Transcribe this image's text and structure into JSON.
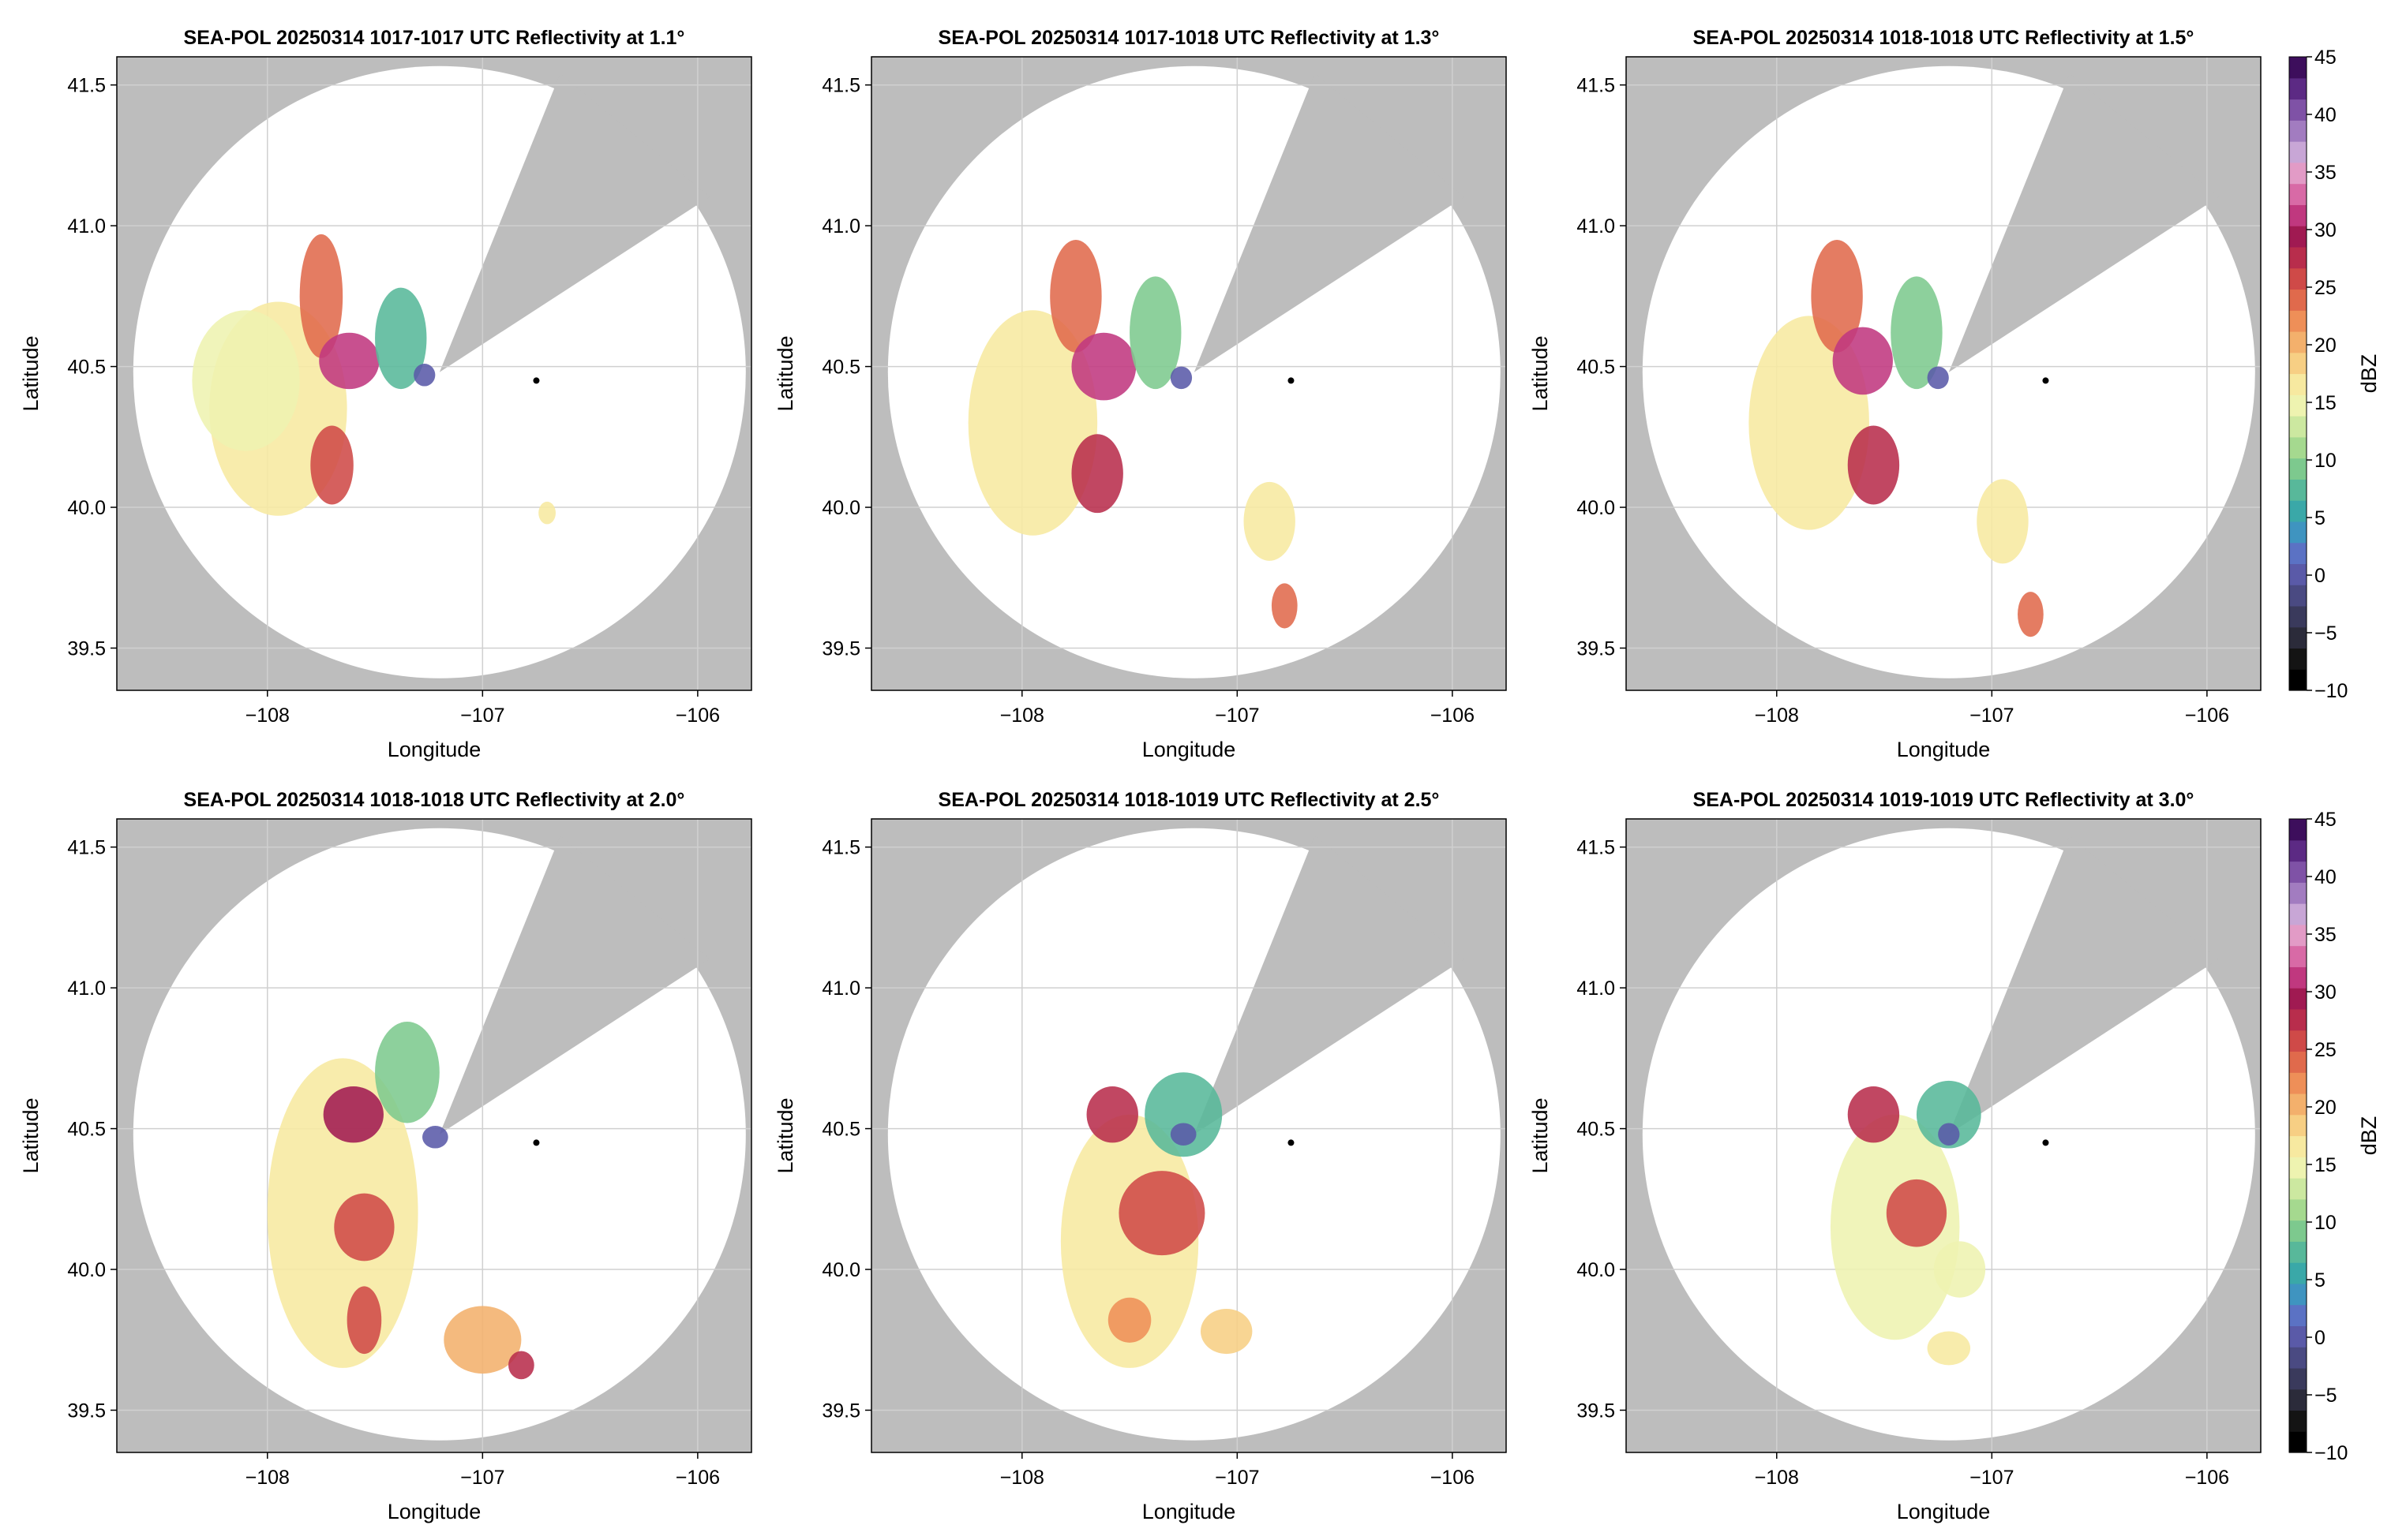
{
  "figure": {
    "colorbar": {
      "label": "dBZ",
      "ticks": [
        -10,
        -5,
        0,
        5,
        10,
        15,
        20,
        25,
        30,
        35,
        40,
        45
      ],
      "tick_labels": [
        "−10",
        "−5",
        "0",
        "5",
        "10",
        "15",
        "20",
        "25",
        "30",
        "35",
        "40",
        "45"
      ],
      "range": [
        -10,
        45
      ],
      "colors": [
        "#000000",
        "#141414",
        "#2b2b3a",
        "#3a3a5c",
        "#4a4a82",
        "#5a5aa8",
        "#5b72c4",
        "#3f94c0",
        "#3aa8a8",
        "#58b89a",
        "#7dc98e",
        "#a5d98f",
        "#cce8a0",
        "#eef3b0",
        "#f7e9a0",
        "#f7cf84",
        "#f3b06c",
        "#ee8f58",
        "#e06a4c",
        "#cf4a48",
        "#b82d4c",
        "#a01a52",
        "#c0387f",
        "#d86aa6",
        "#e29bc6",
        "#c8a6d6",
        "#a27cc0",
        "#7f52a6",
        "#5c2a84",
        "#3d0e5c"
      ]
    },
    "site_marker": {
      "lon": -106.75,
      "lat": 40.45
    },
    "radar_center": {
      "lon": -107.2,
      "lat": 40.48
    }
  },
  "chart_data": [
    {
      "type": "heatmap",
      "title": "SEA-POL 20250314 1017-1017 UTC Reflectivity at 1.1°",
      "xlabel": "Longitude",
      "ylabel": "Latitude",
      "xlim": [
        -108.7,
        -105.75
      ],
      "ylim": [
        39.35,
        41.6
      ],
      "xticks": [
        -108,
        -107,
        -106
      ],
      "xtick_labels": [
        "−108",
        "−107",
        "−106"
      ],
      "yticks": [
        39.5,
        40.0,
        40.5,
        41.0,
        41.5
      ],
      "ytick_labels": [
        "39.5",
        "40.0",
        "40.5",
        "41.0",
        "41.5"
      ],
      "grid": true,
      "value_units": "dBZ",
      "value_range": [
        -10,
        45
      ],
      "echo_regions": [
        {
          "lon": -107.95,
          "lat": 40.35,
          "rx": 0.32,
          "ry": 0.38,
          "dbz": 16
        },
        {
          "lon": -108.1,
          "lat": 40.45,
          "rx": 0.25,
          "ry": 0.25,
          "dbz": 14
        },
        {
          "lon": -107.75,
          "lat": 40.75,
          "rx": 0.1,
          "ry": 0.22,
          "dbz": 24
        },
        {
          "lon": -107.62,
          "lat": 40.52,
          "rx": 0.14,
          "ry": 0.1,
          "dbz": 31
        },
        {
          "lon": -107.7,
          "lat": 40.15,
          "rx": 0.1,
          "ry": 0.14,
          "dbz": 26
        },
        {
          "lon": -107.38,
          "lat": 40.6,
          "rx": 0.12,
          "ry": 0.18,
          "dbz": 8
        },
        {
          "lon": -107.27,
          "lat": 40.47,
          "rx": 0.05,
          "ry": 0.04,
          "dbz": 0
        },
        {
          "lon": -106.7,
          "lat": 39.98,
          "rx": 0.04,
          "ry": 0.04,
          "dbz": 17
        }
      ]
    },
    {
      "type": "heatmap",
      "title": "SEA-POL 20250314 1017-1018 UTC Reflectivity at 1.3°",
      "xlabel": "Longitude",
      "ylabel": "Latitude",
      "xlim": [
        -108.7,
        -105.75
      ],
      "ylim": [
        39.35,
        41.6
      ],
      "xticks": [
        -108,
        -107,
        -106
      ],
      "xtick_labels": [
        "−108",
        "−107",
        "−106"
      ],
      "yticks": [
        39.5,
        40.0,
        40.5,
        41.0,
        41.5
      ],
      "ytick_labels": [
        "39.5",
        "40.0",
        "40.5",
        "41.0",
        "41.5"
      ],
      "grid": true,
      "value_units": "dBZ",
      "value_range": [
        -10,
        45
      ],
      "echo_regions": [
        {
          "lon": -107.95,
          "lat": 40.3,
          "rx": 0.3,
          "ry": 0.4,
          "dbz": 16
        },
        {
          "lon": -107.75,
          "lat": 40.75,
          "rx": 0.12,
          "ry": 0.2,
          "dbz": 24
        },
        {
          "lon": -107.62,
          "lat": 40.5,
          "rx": 0.15,
          "ry": 0.12,
          "dbz": 31
        },
        {
          "lon": -107.65,
          "lat": 40.12,
          "rx": 0.12,
          "ry": 0.14,
          "dbz": 27
        },
        {
          "lon": -107.38,
          "lat": 40.62,
          "rx": 0.12,
          "ry": 0.2,
          "dbz": 9
        },
        {
          "lon": -107.26,
          "lat": 40.46,
          "rx": 0.05,
          "ry": 0.04,
          "dbz": 0
        },
        {
          "lon": -106.85,
          "lat": 39.95,
          "rx": 0.12,
          "ry": 0.14,
          "dbz": 16
        },
        {
          "lon": -106.78,
          "lat": 39.65,
          "rx": 0.06,
          "ry": 0.08,
          "dbz": 23
        }
      ]
    },
    {
      "type": "heatmap",
      "title": "SEA-POL 20250314 1018-1018 UTC Reflectivity at 1.5°",
      "xlabel": "Longitude",
      "ylabel": "Latitude",
      "xlim": [
        -108.7,
        -105.75
      ],
      "ylim": [
        39.35,
        41.6
      ],
      "xticks": [
        -108,
        -107,
        -106
      ],
      "xtick_labels": [
        "−108",
        "−107",
        "−106"
      ],
      "yticks": [
        39.5,
        40.0,
        40.5,
        41.0,
        41.5
      ],
      "ytick_labels": [
        "39.5",
        "40.0",
        "40.5",
        "41.0",
        "41.5"
      ],
      "grid": true,
      "value_units": "dBZ",
      "value_range": [
        -10,
        45
      ],
      "echo_regions": [
        {
          "lon": -107.85,
          "lat": 40.3,
          "rx": 0.28,
          "ry": 0.38,
          "dbz": 17
        },
        {
          "lon": -107.72,
          "lat": 40.75,
          "rx": 0.12,
          "ry": 0.2,
          "dbz": 24
        },
        {
          "lon": -107.6,
          "lat": 40.52,
          "rx": 0.14,
          "ry": 0.12,
          "dbz": 31
        },
        {
          "lon": -107.55,
          "lat": 40.15,
          "rx": 0.12,
          "ry": 0.14,
          "dbz": 27
        },
        {
          "lon": -107.35,
          "lat": 40.62,
          "rx": 0.12,
          "ry": 0.2,
          "dbz": 9
        },
        {
          "lon": -107.25,
          "lat": 40.46,
          "rx": 0.05,
          "ry": 0.04,
          "dbz": 0
        },
        {
          "lon": -106.95,
          "lat": 39.95,
          "rx": 0.12,
          "ry": 0.15,
          "dbz": 16
        },
        {
          "lon": -106.82,
          "lat": 39.62,
          "rx": 0.06,
          "ry": 0.08,
          "dbz": 24
        }
      ]
    },
    {
      "type": "heatmap",
      "title": "SEA-POL 20250314 1018-1018 UTC Reflectivity at 2.0°",
      "xlabel": "Longitude",
      "ylabel": "Latitude",
      "xlim": [
        -108.7,
        -105.75
      ],
      "ylim": [
        39.35,
        41.6
      ],
      "xticks": [
        -108,
        -107,
        -106
      ],
      "xtick_labels": [
        "−108",
        "−107",
        "−106"
      ],
      "yticks": [
        39.5,
        40.0,
        40.5,
        41.0,
        41.5
      ],
      "ytick_labels": [
        "39.5",
        "40.0",
        "40.5",
        "41.0",
        "41.5"
      ],
      "grid": true,
      "value_units": "dBZ",
      "value_range": [
        -10,
        45
      ],
      "echo_regions": [
        {
          "lon": -107.65,
          "lat": 40.2,
          "rx": 0.35,
          "ry": 0.55,
          "dbz": 17
        },
        {
          "lon": -107.6,
          "lat": 40.55,
          "rx": 0.14,
          "ry": 0.1,
          "dbz": 30
        },
        {
          "lon": -107.55,
          "lat": 40.15,
          "rx": 0.14,
          "ry": 0.12,
          "dbz": 26
        },
        {
          "lon": -107.55,
          "lat": 39.82,
          "rx": 0.08,
          "ry": 0.12,
          "dbz": 25
        },
        {
          "lon": -107.35,
          "lat": 40.7,
          "rx": 0.15,
          "ry": 0.18,
          "dbz": 10
        },
        {
          "lon": -107.22,
          "lat": 40.47,
          "rx": 0.06,
          "ry": 0.04,
          "dbz": 0
        },
        {
          "lon": -107.0,
          "lat": 39.75,
          "rx": 0.18,
          "ry": 0.12,
          "dbz": 20
        },
        {
          "lon": -106.82,
          "lat": 39.66,
          "rx": 0.06,
          "ry": 0.05,
          "dbz": 27
        }
      ]
    },
    {
      "type": "heatmap",
      "title": "SEA-POL 20250314 1018-1019 UTC Reflectivity at 2.5°",
      "xlabel": "Longitude",
      "ylabel": "Latitude",
      "xlim": [
        -108.7,
        -105.75
      ],
      "ylim": [
        39.35,
        41.6
      ],
      "xticks": [
        -108,
        -107,
        -106
      ],
      "xtick_labels": [
        "−108",
        "−107",
        "−106"
      ],
      "yticks": [
        39.5,
        40.0,
        40.5,
        41.0,
        41.5
      ],
      "ytick_labels": [
        "39.5",
        "40.0",
        "40.5",
        "41.0",
        "41.5"
      ],
      "grid": true,
      "value_units": "dBZ",
      "value_range": [
        -10,
        45
      ],
      "echo_regions": [
        {
          "lon": -107.5,
          "lat": 40.1,
          "rx": 0.32,
          "ry": 0.45,
          "dbz": 16
        },
        {
          "lon": -107.58,
          "lat": 40.55,
          "rx": 0.12,
          "ry": 0.1,
          "dbz": 28
        },
        {
          "lon": -107.35,
          "lat": 40.2,
          "rx": 0.2,
          "ry": 0.15,
          "dbz": 26
        },
        {
          "lon": -107.25,
          "lat": 40.55,
          "rx": 0.18,
          "ry": 0.15,
          "dbz": 8
        },
        {
          "lon": -107.25,
          "lat": 40.48,
          "rx": 0.06,
          "ry": 0.04,
          "dbz": 0
        },
        {
          "lon": -107.5,
          "lat": 39.82,
          "rx": 0.1,
          "ry": 0.08,
          "dbz": 22
        },
        {
          "lon": -107.05,
          "lat": 39.78,
          "rx": 0.12,
          "ry": 0.08,
          "dbz": 18
        }
      ]
    },
    {
      "type": "heatmap",
      "title": "SEA-POL 20250314 1019-1019 UTC Reflectivity at 3.0°",
      "xlabel": "Longitude",
      "ylabel": "Latitude",
      "xlim": [
        -108.7,
        -105.75
      ],
      "ylim": [
        39.35,
        41.6
      ],
      "xticks": [
        -108,
        -107,
        -106
      ],
      "xtick_labels": [
        "−108",
        "−107",
        "−106"
      ],
      "yticks": [
        39.5,
        40.0,
        40.5,
        41.0,
        41.5
      ],
      "ytick_labels": [
        "39.5",
        "40.0",
        "40.5",
        "41.0",
        "41.5"
      ],
      "grid": true,
      "value_units": "dBZ",
      "value_range": [
        -10,
        45
      ],
      "echo_regions": [
        {
          "lon": -107.45,
          "lat": 40.15,
          "rx": 0.3,
          "ry": 0.4,
          "dbz": 15
        },
        {
          "lon": -107.55,
          "lat": 40.55,
          "rx": 0.12,
          "ry": 0.1,
          "dbz": 28
        },
        {
          "lon": -107.35,
          "lat": 40.2,
          "rx": 0.14,
          "ry": 0.12,
          "dbz": 26
        },
        {
          "lon": -107.2,
          "lat": 40.55,
          "rx": 0.15,
          "ry": 0.12,
          "dbz": 7
        },
        {
          "lon": -107.2,
          "lat": 40.48,
          "rx": 0.05,
          "ry": 0.04,
          "dbz": 0
        },
        {
          "lon": -107.15,
          "lat": 40.0,
          "rx": 0.12,
          "ry": 0.1,
          "dbz": 14
        },
        {
          "lon": -107.2,
          "lat": 39.72,
          "rx": 0.1,
          "ry": 0.06,
          "dbz": 16
        }
      ]
    }
  ]
}
